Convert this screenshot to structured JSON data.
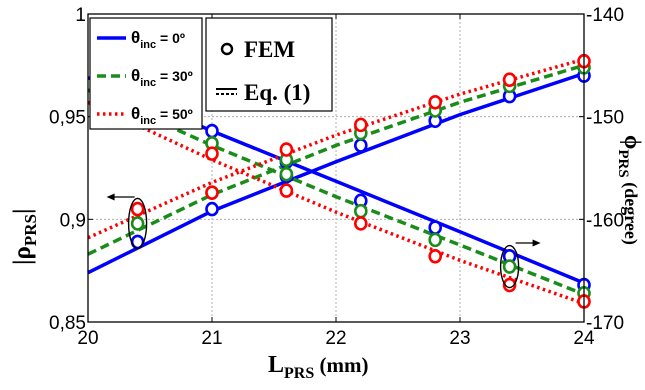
{
  "chart_data": {
    "type": "line",
    "x_label": {
      "main": "L",
      "sub": "PRS",
      "unit": " (mm)"
    },
    "y_left_label": {
      "main": "|ρ",
      "sub": "PRS",
      "tail": "|"
    },
    "y_right_label": {
      "main": "ϕ",
      "sub": "PRS",
      "unit": " (degree)"
    },
    "xlim": [
      20,
      24
    ],
    "ylim_left": [
      0.85,
      1
    ],
    "ylim_right": [
      -170,
      -140
    ],
    "x_ticks": [
      "20",
      "21",
      "22",
      "23",
      "24"
    ],
    "y_left_ticks": [
      "0,85",
      "0,9",
      "0,95",
      "1"
    ],
    "y_right_ticks": [
      "-170",
      "-160",
      "-150",
      "-140"
    ],
    "grid": true,
    "fem_x": [
      20.4,
      21.0,
      21.6,
      22.2,
      22.8,
      23.4,
      24.0
    ],
    "series": [
      {
        "name_main": "θ",
        "name_sub": "inc",
        "name_tail": " = 0º",
        "color": "#0000ff",
        "dash": "solid",
        "magnitude": {
          "x": [
            20,
            21,
            22,
            23,
            24
          ],
          "y": [
            0.874,
            0.904,
            0.928,
            0.951,
            0.971
          ]
        },
        "magnitude_fem": [
          0.889,
          0.905,
          0.921,
          0.936,
          0.948,
          0.96,
          0.97
        ],
        "phase": {
          "x": [
            20,
            21,
            22,
            23,
            24
          ],
          "y": [
            -146.2,
            -151.4,
            -156.3,
            -161.2,
            -166.2
          ]
        },
        "phase_fem": [
          -146.8,
          -151.4,
          -154.4,
          -158.2,
          -160.8,
          -163.6,
          -166.4
        ]
      },
      {
        "name_main": "θ",
        "name_sub": "inc",
        "name_tail": " = 30º",
        "color": "#1a8c1a",
        "dash": "dashed",
        "magnitude": {
          "x": [
            20,
            21,
            22,
            23,
            24
          ],
          "y": [
            0.883,
            0.912,
            0.936,
            0.957,
            0.975
          ]
        },
        "magnitude_fem": [
          0.898,
          0.913,
          0.929,
          0.942,
          0.953,
          0.965,
          0.974
        ],
        "phase": {
          "x": [
            20,
            21,
            22,
            23,
            24
          ],
          "y": [
            -147.4,
            -152.8,
            -157.8,
            -162.5,
            -167.3
          ]
        },
        "phase_fem": [
          -148.6,
          -152.6,
          -155.6,
          -159.2,
          -162.0,
          -164.6,
          -167.2
        ]
      },
      {
        "name_main": "θ",
        "name_sub": "inc",
        "name_tail": " = 50º",
        "color": "#ff0000",
        "dash": "dotted",
        "magnitude": {
          "x": [
            20,
            21,
            22,
            23,
            24
          ],
          "y": [
            0.891,
            0.918,
            0.941,
            0.961,
            0.978
          ]
        },
        "magnitude_fem": [
          0.905,
          0.913,
          0.934,
          0.946,
          0.957,
          0.968,
          0.977
        ],
        "phase": {
          "x": [
            20,
            21,
            22,
            23,
            24
          ],
          "y": [
            -148.6,
            -154.2,
            -159.3,
            -164.0,
            -168.2
          ]
        },
        "phase_fem": [
          -149.6,
          -153.6,
          -157.2,
          -160.4,
          -163.6,
          -166.4,
          -168.0
        ]
      }
    ],
    "legend_methods": [
      "FEM",
      "Eq. (1)"
    ]
  }
}
